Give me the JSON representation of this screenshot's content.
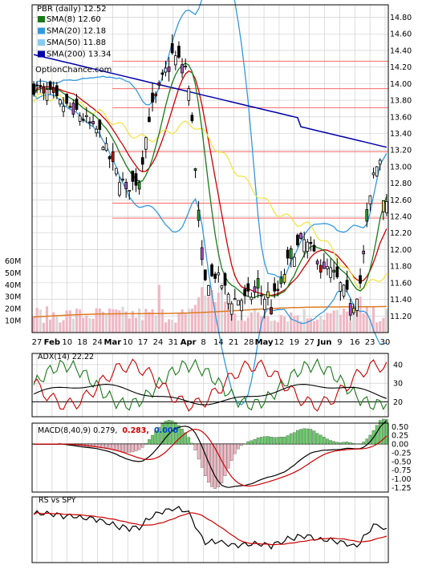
{
  "colors": {
    "price_up": "#ffffff",
    "price_down": "#000000",
    "candle_purple": "#b84fd2",
    "candle_yellow": "#f2e23b",
    "candle_red": "#d01010",
    "candle_green": "#28b028",
    "sma8": "#1a7a1a",
    "sma20": "#3399dd",
    "sma50": "#88ccee",
    "sma200": "#0000aa",
    "bollinger": "#3399dd",
    "red_line": "#cc0000",
    "volume_bar": "#f0b8c4",
    "volume_bar_alt": "#d8d8d8",
    "volume_avg": "#e07a20",
    "support_line": "#ff6666",
    "macd_hist_pos": "#66cc66",
    "macd_hist_neg": "#f0b8c4",
    "grid": "#c8c8c8"
  },
  "chart_data": [
    {
      "type": "candlestick",
      "panel": "price",
      "title": "PBR (daily) 12.52",
      "watermark": "OptionChance.com",
      "legend_placement": "top-left",
      "legend": [
        {
          "label": "SMA(8) 12.60",
          "color": "#1a7a1a"
        },
        {
          "label": "SMA(20) 12.18",
          "color": "#3399dd"
        },
        {
          "label": "SMA(50) 11.88",
          "color": "#88ccee"
        },
        {
          "label": "SMA(200) 13.34",
          "color": "#0000aa"
        }
      ],
      "y_ticks": [
        "14.80",
        "14.60",
        "14.40",
        "14.20",
        "14.00",
        "13.80",
        "13.60",
        "13.40",
        "13.20",
        "13.00",
        "12.80",
        "12.60",
        "12.40",
        "12.20",
        "12.00",
        "11.80",
        "11.60",
        "11.40",
        "11.20"
      ],
      "ylim": [
        11.0,
        14.95
      ],
      "horizontal_levels": [
        14.27,
        13.94,
        13.71,
        13.18,
        12.56,
        12.38
      ],
      "volume_ticks": [
        "60M",
        "50M",
        "40M",
        "30M",
        "20M",
        "10M"
      ],
      "volume_lim": [
        0,
        65
      ],
      "x_ticks": [
        "27",
        "Feb",
        "10",
        "18",
        "24",
        "Mar",
        "10",
        "17",
        "24",
        "31",
        "Apr",
        "8",
        "14",
        "21",
        "28",
        "May",
        "12",
        "19",
        "27",
        "Jun",
        "9",
        "16",
        "23",
        "30"
      ],
      "x_ticks_bold": [
        "Feb",
        "Mar",
        "Apr",
        "May",
        "Jun"
      ],
      "grid": true
    },
    {
      "type": "line",
      "panel": "adx",
      "label": "ADX(14) 22.22",
      "y_ticks": [
        "40",
        "30",
        "20"
      ],
      "ylim": [
        12,
        46
      ],
      "series": [
        {
          "name": "ADX(14)",
          "color": "#000000"
        },
        {
          "color": "#cc0000"
        },
        {
          "color": "#1a7a1a"
        }
      ]
    },
    {
      "type": "bar+line",
      "panel": "macd",
      "label_parts": [
        "MACD(8,40,9) 0.279,",
        "0.283,",
        "0.000"
      ],
      "label_colors": [
        "#000000",
        "#cc0000",
        "#0044cc"
      ],
      "y_ticks": [
        "0.50",
        "0.25",
        "0.00",
        "-0.25",
        "-0.50",
        "-0.75",
        "-1.00",
        "-1.25"
      ],
      "ylim": [
        -1.38,
        0.6
      ]
    },
    {
      "type": "line",
      "panel": "rs",
      "label": "RS vs SPY",
      "series": [
        {
          "name": "RS vs SPY",
          "color": "#000000"
        },
        {
          "color": "#cc0000"
        }
      ]
    }
  ]
}
